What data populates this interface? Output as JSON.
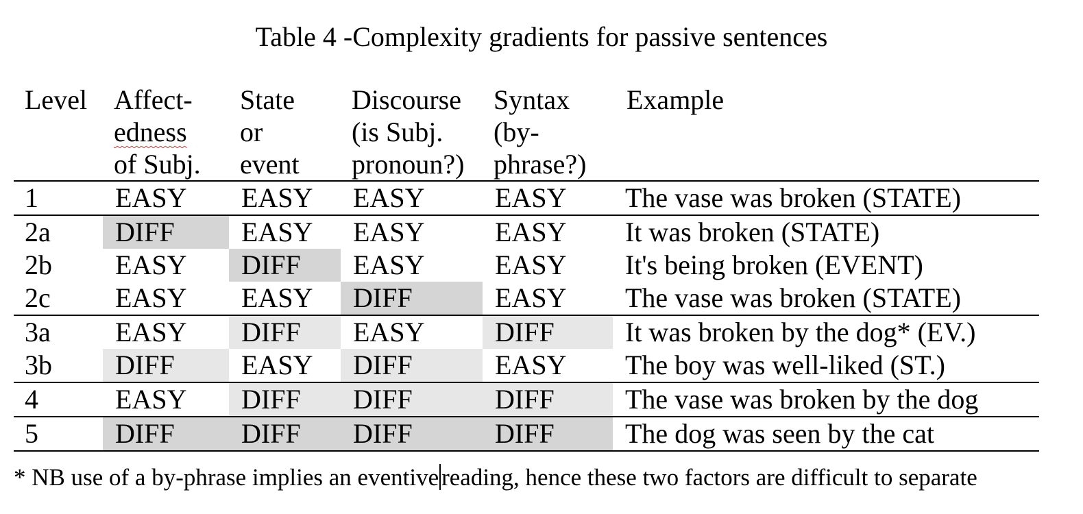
{
  "title": "Table 4 -Complexity gradients for passive sentences",
  "table": {
    "headers": [
      "Level",
      "Affect-\nedness\nof Subj.",
      "State\nor\nevent",
      "Discourse\n(is Subj.\npronoun?)",
      "Syntax\n(by-\nphrase?)",
      "Example"
    ],
    "rows": [
      {
        "level": "1",
        "affectedness": "EASY",
        "state_event": "EASY",
        "discourse": "EASY",
        "syntax": "EASY",
        "example": "The vase was broken (STATE)"
      },
      {
        "level": "2a",
        "affectedness": "DIFF",
        "state_event": "EASY",
        "discourse": "EASY",
        "syntax": "EASY",
        "example": "It was broken (STATE)"
      },
      {
        "level": "2b",
        "affectedness": "EASY",
        "state_event": "DIFF",
        "discourse": "EASY",
        "syntax": "EASY",
        "example": "It's being broken (EVENT)"
      },
      {
        "level": "2c",
        "affectedness": "EASY",
        "state_event": "EASY",
        "discourse": "DIFF",
        "syntax": "EASY",
        "example": "The vase was broken (STATE)"
      },
      {
        "level": "3a",
        "affectedness": "EASY",
        "state_event": "DIFF",
        "discourse": "EASY",
        "syntax": "DIFF",
        "example": "It was broken by the dog* (EV.)"
      },
      {
        "level": "3b",
        "affectedness": "DIFF",
        "state_event": "EASY",
        "discourse": "DIFF",
        "syntax": "EASY",
        "example": "The boy was well-liked (ST.)"
      },
      {
        "level": "4",
        "affectedness": "EASY",
        "state_event": "DIFF",
        "discourse": "DIFF",
        "syntax": "DIFF",
        "example": "The vase was broken by the dog"
      },
      {
        "level": "5",
        "affectedness": "DIFF",
        "state_event": "DIFF",
        "discourse": "DIFF",
        "syntax": "DIFF",
        "example": "The dog was seen by the cat"
      }
    ]
  },
  "footnote": {
    "before_caret": "* NB use of a by-phrase implies an eventive",
    "after_caret": "reading, hence these two factors are difficult to separate"
  },
  "colors": {
    "shade_dark": "#d5d5d5",
    "shade_light": "#e7e7e7",
    "spellcheck_underline": "#d23a3a",
    "rule": "#000000"
  }
}
